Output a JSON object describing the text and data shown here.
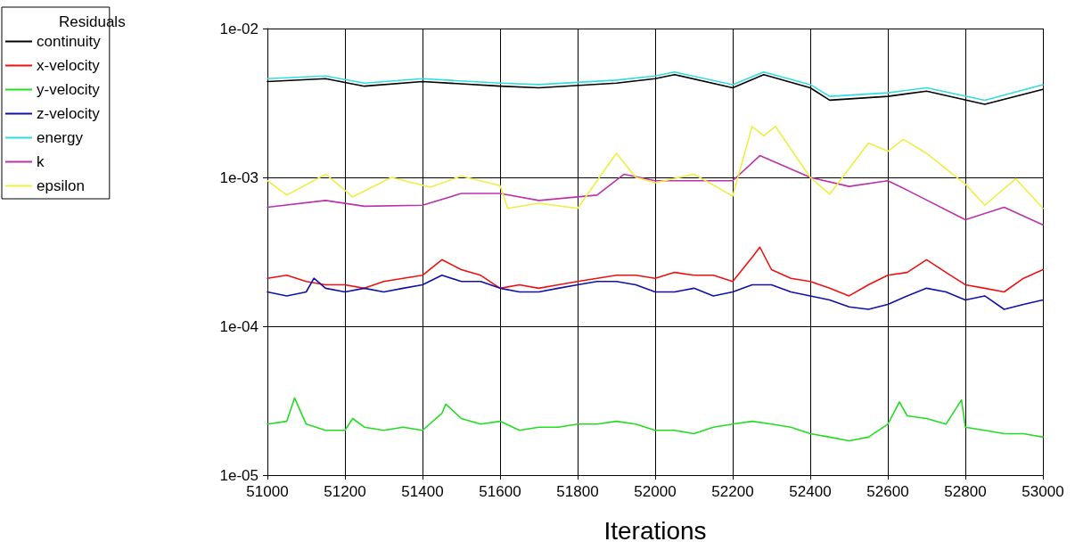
{
  "chart_data": {
    "type": "line",
    "xlabel": "Iterations",
    "legend_title": "Residuals",
    "legend": "top left",
    "grid": true,
    "log": "y",
    "marker": "none",
    "line_style": "solid",
    "xlim": [
      51000,
      53000
    ],
    "xticks": [
      51000,
      51200,
      51400,
      51600,
      51800,
      52000,
      52200,
      52400,
      52600,
      52800,
      53000
    ],
    "ylim": [
      1e-05,
      0.01
    ],
    "yticks": [
      {
        "value": 1e-05,
        "label": "1e-05"
      },
      {
        "value": 0.0001,
        "label": "1e-04"
      },
      {
        "value": 0.001,
        "label": "1e-03"
      },
      {
        "value": 0.01,
        "label": "1e-02"
      }
    ],
    "series": [
      {
        "name": "continuity",
        "color": "#000000",
        "x": [
          51000,
          51150,
          51250,
          51400,
          51600,
          51700,
          51900,
          52000,
          52050,
          52200,
          52280,
          52400,
          52450,
          52600,
          52700,
          52850,
          53000
        ],
        "values": [
          0.0044,
          0.0046,
          0.0041,
          0.0044,
          0.0041,
          0.004,
          0.0043,
          0.0046,
          0.0049,
          0.004,
          0.0049,
          0.004,
          0.0033,
          0.0035,
          0.0038,
          0.0031,
          0.0039
        ]
      },
      {
        "name": "x-velocity",
        "color": "#ee1111",
        "x": [
          51000,
          51050,
          51100,
          51150,
          51200,
          51250,
          51300,
          51350,
          51400,
          51450,
          51500,
          51550,
          51600,
          51650,
          51700,
          51750,
          51800,
          51850,
          51900,
          51950,
          52000,
          52050,
          52100,
          52150,
          52200,
          52250,
          52270,
          52300,
          52350,
          52400,
          52450,
          52500,
          52550,
          52600,
          52650,
          52700,
          52750,
          52800,
          52850,
          52900,
          52950,
          53000
        ],
        "values": [
          0.00021,
          0.00022,
          0.0002,
          0.00019,
          0.00019,
          0.00018,
          0.0002,
          0.00021,
          0.00022,
          0.00028,
          0.00024,
          0.00022,
          0.00018,
          0.00019,
          0.00018,
          0.00019,
          0.0002,
          0.00021,
          0.00022,
          0.00022,
          0.00021,
          0.00023,
          0.00022,
          0.00022,
          0.0002,
          0.00029,
          0.00034,
          0.00024,
          0.00021,
          0.0002,
          0.00018,
          0.00016,
          0.00019,
          0.00022,
          0.00023,
          0.00028,
          0.00023,
          0.00019,
          0.00018,
          0.00017,
          0.00021,
          0.00024
        ]
      },
      {
        "name": "y-velocity",
        "color": "#22dd22",
        "x": [
          51000,
          51050,
          51070,
          51100,
          51150,
          51200,
          51220,
          51250,
          51300,
          51350,
          51400,
          51450,
          51460,
          51500,
          51550,
          51600,
          51650,
          51700,
          51750,
          51800,
          51850,
          51900,
          51950,
          52000,
          52050,
          52100,
          52150,
          52200,
          52250,
          52300,
          52350,
          52400,
          52450,
          52500,
          52550,
          52600,
          52630,
          52650,
          52700,
          52750,
          52790,
          52800,
          52850,
          52900,
          52950,
          53000
        ],
        "values": [
          2.2e-05,
          2.3e-05,
          3.3e-05,
          2.2e-05,
          2e-05,
          2e-05,
          2.4e-05,
          2.1e-05,
          2e-05,
          2.1e-05,
          2e-05,
          2.6e-05,
          3e-05,
          2.4e-05,
          2.2e-05,
          2.3e-05,
          2e-05,
          2.1e-05,
          2.1e-05,
          2.2e-05,
          2.2e-05,
          2.3e-05,
          2.2e-05,
          2e-05,
          2e-05,
          1.9e-05,
          2.1e-05,
          2.2e-05,
          2.3e-05,
          2.2e-05,
          2.1e-05,
          1.9e-05,
          1.8e-05,
          1.7e-05,
          1.8e-05,
          2.2e-05,
          3.1e-05,
          2.5e-05,
          2.4e-05,
          2.2e-05,
          3.2e-05,
          2.1e-05,
          2e-05,
          1.9e-05,
          1.9e-05,
          1.8e-05
        ]
      },
      {
        "name": "z-velocity",
        "color": "#1111aa",
        "x": [
          51000,
          51050,
          51100,
          51120,
          51150,
          51200,
          51250,
          51300,
          51350,
          51400,
          51450,
          51500,
          51550,
          51600,
          51650,
          51700,
          51750,
          51800,
          51850,
          51900,
          51950,
          52000,
          52050,
          52100,
          52150,
          52200,
          52250,
          52300,
          52350,
          52400,
          52450,
          52500,
          52550,
          52600,
          52650,
          52700,
          52750,
          52800,
          52850,
          52900,
          52950,
          53000
        ],
        "values": [
          0.00017,
          0.00016,
          0.00017,
          0.00021,
          0.00018,
          0.00017,
          0.00018,
          0.00017,
          0.00018,
          0.00019,
          0.00022,
          0.0002,
          0.0002,
          0.00018,
          0.00017,
          0.00017,
          0.00018,
          0.00019,
          0.0002,
          0.0002,
          0.00019,
          0.00017,
          0.00017,
          0.00018,
          0.00016,
          0.00017,
          0.00019,
          0.00019,
          0.00017,
          0.00016,
          0.00015,
          0.000135,
          0.00013,
          0.00014,
          0.00016,
          0.00018,
          0.00017,
          0.00015,
          0.00016,
          0.00013,
          0.00014,
          0.00015
        ]
      },
      {
        "name": "energy",
        "color": "#33dddd",
        "x": [
          51000,
          51150,
          51250,
          51400,
          51600,
          51700,
          51900,
          52000,
          52050,
          52200,
          52280,
          52400,
          52450,
          52600,
          52700,
          52850,
          53000
        ],
        "values": [
          0.0046,
          0.0048,
          0.0043,
          0.0046,
          0.0043,
          0.0042,
          0.0045,
          0.0048,
          0.0051,
          0.0042,
          0.0051,
          0.0042,
          0.0035,
          0.0037,
          0.004,
          0.0033,
          0.0042
        ]
      },
      {
        "name": "k",
        "color": "#bb33aa",
        "x": [
          51000,
          51150,
          51250,
          51400,
          51500,
          51600,
          51700,
          51850,
          51920,
          52000,
          52200,
          52270,
          52400,
          52500,
          52600,
          52650,
          52800,
          52900,
          53000
        ],
        "values": [
          0.00063,
          0.0007,
          0.00064,
          0.00065,
          0.00078,
          0.00078,
          0.0007,
          0.00076,
          0.00105,
          0.00095,
          0.00095,
          0.0014,
          0.001,
          0.00087,
          0.00095,
          0.00082,
          0.00052,
          0.00063,
          0.00048
        ]
      },
      {
        "name": "epsilon",
        "color": "#eeee44",
        "x": [
          51000,
          51050,
          51150,
          51220,
          51320,
          51420,
          51500,
          51600,
          51620,
          51700,
          51800,
          51900,
          51950,
          52000,
          52100,
          52200,
          52250,
          52280,
          52310,
          52400,
          52450,
          52550,
          52600,
          52640,
          52700,
          52800,
          52850,
          52930,
          53000
        ],
        "values": [
          0.00095,
          0.00076,
          0.00105,
          0.00074,
          0.001,
          0.00086,
          0.00102,
          0.00088,
          0.00062,
          0.00067,
          0.00062,
          0.00145,
          0.001,
          0.00092,
          0.00105,
          0.00075,
          0.0022,
          0.0019,
          0.0022,
          0.001,
          0.00077,
          0.0017,
          0.0015,
          0.0018,
          0.00145,
          0.0009,
          0.00065,
          0.00098,
          0.00062
        ]
      }
    ]
  }
}
